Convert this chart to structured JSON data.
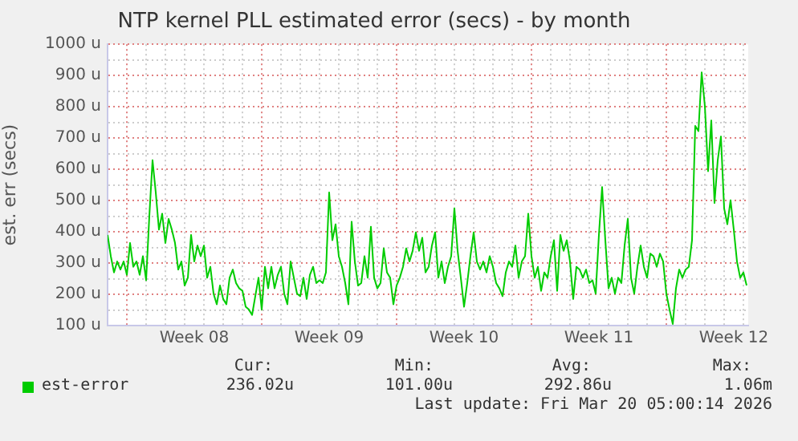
{
  "chart_data": {
    "type": "line",
    "title": "NTP kernel PLL estimated error (secs) - by month",
    "ylabel": "est. err (secs)",
    "legend": "bottom left",
    "grid": true,
    "marker": "none",
    "line_style": "solid",
    "xlim": [
      "2026-02-15T00:00",
      "2026-03-20T06:00"
    ],
    "ylim": [
      100,
      1000
    ],
    "yticks": [
      {
        "value": 100,
        "label": "100 u"
      },
      {
        "value": 150,
        "label": null
      },
      {
        "value": 200,
        "label": "200 u"
      },
      {
        "value": 250,
        "label": null
      },
      {
        "value": 300,
        "label": "300 u"
      },
      {
        "value": 350,
        "label": null
      },
      {
        "value": 400,
        "label": "400 u"
      },
      {
        "value": 450,
        "label": null
      },
      {
        "value": 500,
        "label": "500 u"
      },
      {
        "value": 550,
        "label": null
      },
      {
        "value": 600,
        "label": "600 u"
      },
      {
        "value": 650,
        "label": null
      },
      {
        "value": 700,
        "label": "700 u"
      },
      {
        "value": 750,
        "label": null
      },
      {
        "value": 800,
        "label": "800 u"
      },
      {
        "value": 850,
        "label": null
      },
      {
        "value": 900,
        "label": "900 u"
      },
      {
        "value": 950,
        "label": null
      },
      {
        "value": 1000,
        "label": "1000 u"
      }
    ],
    "xticks": [
      {
        "value": "2026-02-16T00:00",
        "label": null
      },
      {
        "value": "2026-02-17T00:00",
        "label": null
      },
      {
        "value": "2026-02-18T00:00",
        "label": null
      },
      {
        "value": "2026-02-19T00:00",
        "label": null
      },
      {
        "value": "2026-02-19T12:00",
        "label": "Week 08"
      },
      {
        "value": "2026-02-20T00:00",
        "label": null
      },
      {
        "value": "2026-02-21T00:00",
        "label": null
      },
      {
        "value": "2026-02-22T00:00",
        "label": null
      },
      {
        "value": "2026-02-23T00:00",
        "label": null
      },
      {
        "value": "2026-02-24T00:00",
        "label": null
      },
      {
        "value": "2026-02-25T00:00",
        "label": null
      },
      {
        "value": "2026-02-26T00:00",
        "label": null
      },
      {
        "value": "2026-02-26T12:00",
        "label": "Week 09"
      },
      {
        "value": "2026-02-27T00:00",
        "label": null
      },
      {
        "value": "2026-02-28T00:00",
        "label": null
      },
      {
        "value": "2026-03-01T00:00",
        "label": null
      },
      {
        "value": "2026-03-02T00:00",
        "label": null
      },
      {
        "value": "2026-03-03T00:00",
        "label": null
      },
      {
        "value": "2026-03-04T00:00",
        "label": null
      },
      {
        "value": "2026-03-05T00:00",
        "label": null
      },
      {
        "value": "2026-03-05T12:00",
        "label": "Week 10"
      },
      {
        "value": "2026-03-06T00:00",
        "label": null
      },
      {
        "value": "2026-03-07T00:00",
        "label": null
      },
      {
        "value": "2026-03-08T00:00",
        "label": null
      },
      {
        "value": "2026-03-09T00:00",
        "label": null
      },
      {
        "value": "2026-03-10T00:00",
        "label": null
      },
      {
        "value": "2026-03-11T00:00",
        "label": null
      },
      {
        "value": "2026-03-12T00:00",
        "label": null
      },
      {
        "value": "2026-03-12T12:00",
        "label": "Week 11"
      },
      {
        "value": "2026-03-13T00:00",
        "label": null
      },
      {
        "value": "2026-03-14T00:00",
        "label": null
      },
      {
        "value": "2026-03-15T00:00",
        "label": null
      },
      {
        "value": "2026-03-16T00:00",
        "label": null
      },
      {
        "value": "2026-03-17T00:00",
        "label": null
      },
      {
        "value": "2026-03-18T00:00",
        "label": null
      },
      {
        "value": "2026-03-19T00:00",
        "label": null
      },
      {
        "value": "2026-03-19T12:00",
        "label": "Week 12"
      },
      {
        "value": "2026-03-20T00:00",
        "label": null
      }
    ],
    "annotations": [
      "Cur:",
      "236.02u",
      "Min:",
      "101.00u",
      "Avg:",
      "292.86u",
      "Max:",
      "1.06m",
      "Last update: Fri Mar 20 05:00:14 2026"
    ],
    "series": [
      {
        "name": "est-error",
        "color": "#00cc00",
        "x": [
          "2026-02-15T00:00",
          "2026-02-15T04:00",
          "2026-02-15T08:00",
          "2026-02-15T12:00",
          "2026-02-15T16:00",
          "2026-02-15T20:00",
          "2026-02-16T00:00",
          "2026-02-16T04:00",
          "2026-02-16T08:00",
          "2026-02-16T12:00",
          "2026-02-16T16:00",
          "2026-02-16T20:00",
          "2026-02-17T00:00",
          "2026-02-17T04:00",
          "2026-02-17T08:00",
          "2026-02-17T12:00",
          "2026-02-17T16:00",
          "2026-02-17T20:00",
          "2026-02-18T00:00",
          "2026-02-18T04:00",
          "2026-02-18T08:00",
          "2026-02-18T12:00",
          "2026-02-18T16:00",
          "2026-02-18T20:00",
          "2026-02-19T00:00",
          "2026-02-19T04:00",
          "2026-02-19T08:00",
          "2026-02-19T12:00",
          "2026-02-19T16:00",
          "2026-02-19T20:00",
          "2026-02-20T00:00",
          "2026-02-20T04:00",
          "2026-02-20T08:00",
          "2026-02-20T12:00",
          "2026-02-20T16:00",
          "2026-02-20T20:00",
          "2026-02-21T00:00",
          "2026-02-21T04:00",
          "2026-02-21T08:00",
          "2026-02-21T12:00",
          "2026-02-21T16:00",
          "2026-02-21T20:00",
          "2026-02-22T00:00",
          "2026-02-22T04:00",
          "2026-02-22T08:00",
          "2026-02-22T12:00",
          "2026-02-22T16:00",
          "2026-02-22T20:00",
          "2026-02-23T00:00",
          "2026-02-23T04:00",
          "2026-02-23T08:00",
          "2026-02-23T12:00",
          "2026-02-23T16:00",
          "2026-02-23T20:00",
          "2026-02-24T00:00",
          "2026-02-24T04:00",
          "2026-02-24T08:00",
          "2026-02-24T12:00",
          "2026-02-24T16:00",
          "2026-02-24T20:00",
          "2026-02-25T00:00",
          "2026-02-25T04:00",
          "2026-02-25T08:00",
          "2026-02-25T12:00",
          "2026-02-25T16:00",
          "2026-02-25T20:00",
          "2026-02-26T00:00",
          "2026-02-26T04:00",
          "2026-02-26T08:00",
          "2026-02-26T12:00",
          "2026-02-26T16:00",
          "2026-02-26T20:00",
          "2026-02-27T00:00",
          "2026-02-27T04:00",
          "2026-02-27T08:00",
          "2026-02-27T12:00",
          "2026-02-27T16:00",
          "2026-02-27T20:00",
          "2026-02-28T00:00",
          "2026-02-28T04:00",
          "2026-02-28T08:00",
          "2026-02-28T12:00",
          "2026-02-28T16:00",
          "2026-02-28T20:00",
          "2026-03-01T00:00",
          "2026-03-01T04:00",
          "2026-03-01T08:00",
          "2026-03-01T12:00",
          "2026-03-01T16:00",
          "2026-03-01T20:00",
          "2026-03-02T00:00",
          "2026-03-02T04:00",
          "2026-03-02T08:00",
          "2026-03-02T12:00",
          "2026-03-02T16:00",
          "2026-03-02T20:00",
          "2026-03-03T00:00",
          "2026-03-03T04:00",
          "2026-03-03T08:00",
          "2026-03-03T12:00",
          "2026-03-03T16:00",
          "2026-03-03T20:00",
          "2026-03-04T00:00",
          "2026-03-04T04:00",
          "2026-03-04T08:00",
          "2026-03-04T12:00",
          "2026-03-04T16:00",
          "2026-03-04T20:00",
          "2026-03-05T00:00",
          "2026-03-05T04:00",
          "2026-03-05T08:00",
          "2026-03-05T12:00",
          "2026-03-05T16:00",
          "2026-03-05T20:00",
          "2026-03-06T00:00",
          "2026-03-06T04:00",
          "2026-03-06T08:00",
          "2026-03-06T12:00",
          "2026-03-06T16:00",
          "2026-03-06T20:00",
          "2026-03-07T00:00",
          "2026-03-07T04:00",
          "2026-03-07T08:00",
          "2026-03-07T12:00",
          "2026-03-07T16:00",
          "2026-03-07T20:00",
          "2026-03-08T00:00",
          "2026-03-08T04:00",
          "2026-03-08T08:00",
          "2026-03-08T12:00",
          "2026-03-08T16:00",
          "2026-03-08T20:00",
          "2026-03-09T00:00",
          "2026-03-09T04:00",
          "2026-03-09T08:00",
          "2026-03-09T12:00",
          "2026-03-09T16:00",
          "2026-03-09T20:00",
          "2026-03-10T00:00",
          "2026-03-10T04:00",
          "2026-03-10T08:00",
          "2026-03-10T12:00",
          "2026-03-10T16:00",
          "2026-03-10T20:00",
          "2026-03-11T00:00",
          "2026-03-11T04:00",
          "2026-03-11T08:00",
          "2026-03-11T12:00",
          "2026-03-11T16:00",
          "2026-03-11T20:00",
          "2026-03-12T00:00",
          "2026-03-12T04:00",
          "2026-03-12T08:00",
          "2026-03-12T12:00",
          "2026-03-12T16:00",
          "2026-03-12T20:00",
          "2026-03-13T00:00",
          "2026-03-13T04:00",
          "2026-03-13T08:00",
          "2026-03-13T12:00",
          "2026-03-13T16:00",
          "2026-03-13T20:00",
          "2026-03-14T00:00",
          "2026-03-14T04:00",
          "2026-03-14T08:00",
          "2026-03-14T12:00",
          "2026-03-14T16:00",
          "2026-03-14T20:00",
          "2026-03-15T00:00",
          "2026-03-15T04:00",
          "2026-03-15T08:00",
          "2026-03-15T12:00",
          "2026-03-15T16:00",
          "2026-03-15T20:00",
          "2026-03-16T00:00",
          "2026-03-16T04:00",
          "2026-03-16T08:00",
          "2026-03-16T12:00",
          "2026-03-16T16:00",
          "2026-03-16T20:00",
          "2026-03-17T00:00",
          "2026-03-17T04:00",
          "2026-03-17T08:00",
          "2026-03-17T12:00",
          "2026-03-17T16:00",
          "2026-03-17T20:00",
          "2026-03-18T00:00",
          "2026-03-18T04:00",
          "2026-03-18T08:00",
          "2026-03-18T12:00",
          "2026-03-18T16:00",
          "2026-03-18T20:00",
          "2026-03-19T00:00",
          "2026-03-19T04:00",
          "2026-03-19T08:00",
          "2026-03-19T12:00",
          "2026-03-19T16:00",
          "2026-03-19T20:00",
          "2026-03-20T00:00",
          "2026-03-20T04:00"
        ],
        "values": [
          390,
          322,
          270,
          305,
          279,
          305,
          262,
          364,
          288,
          305,
          262,
          322,
          245,
          450,
          629,
          526,
          407,
          458,
          364,
          441,
          407,
          364,
          279,
          305,
          228,
          253,
          390,
          305,
          356,
          322,
          356,
          253,
          288,
          202,
          168,
          228,
          185,
          168,
          253,
          279,
          236,
          219,
          211,
          160,
          151,
          134,
          194,
          253,
          151,
          288,
          219,
          288,
          219,
          262,
          288,
          202,
          168,
          305,
          253,
          202,
          194,
          253,
          185,
          262,
          288,
          236,
          245,
          236,
          270,
          526,
          373,
          424,
          322,
          288,
          236,
          168,
          432,
          305,
          228,
          236,
          322,
          253,
          416,
          253,
          219,
          236,
          347,
          270,
          253,
          168,
          228,
          253,
          288,
          347,
          305,
          339,
          398,
          339,
          381,
          270,
          288,
          356,
          398,
          253,
          305,
          236,
          288,
          322,
          475,
          339,
          253,
          160,
          236,
          322,
          398,
          305,
          279,
          305,
          270,
          322,
          288,
          236,
          219,
          194,
          270,
          305,
          288,
          356,
          253,
          305,
          322,
          458,
          322,
          253,
          288,
          211,
          270,
          253,
          322,
          373,
          211,
          390,
          339,
          373,
          305,
          185,
          288,
          279,
          253,
          279,
          236,
          245,
          202,
          390,
          543,
          373,
          219,
          253,
          202,
          253,
          236,
          356,
          441,
          253,
          202,
          288,
          356,
          288,
          253,
          330,
          322,
          288,
          330,
          305,
          202,
          151,
          105,
          219,
          279,
          253,
          279,
          288,
          373,
          739,
          722,
          910,
          802,
          594,
          756,
          492,
          629,
          705,
          475,
          424,
          501,
          407,
          305,
          253,
          270,
          228
        ]
      }
    ]
  }
}
